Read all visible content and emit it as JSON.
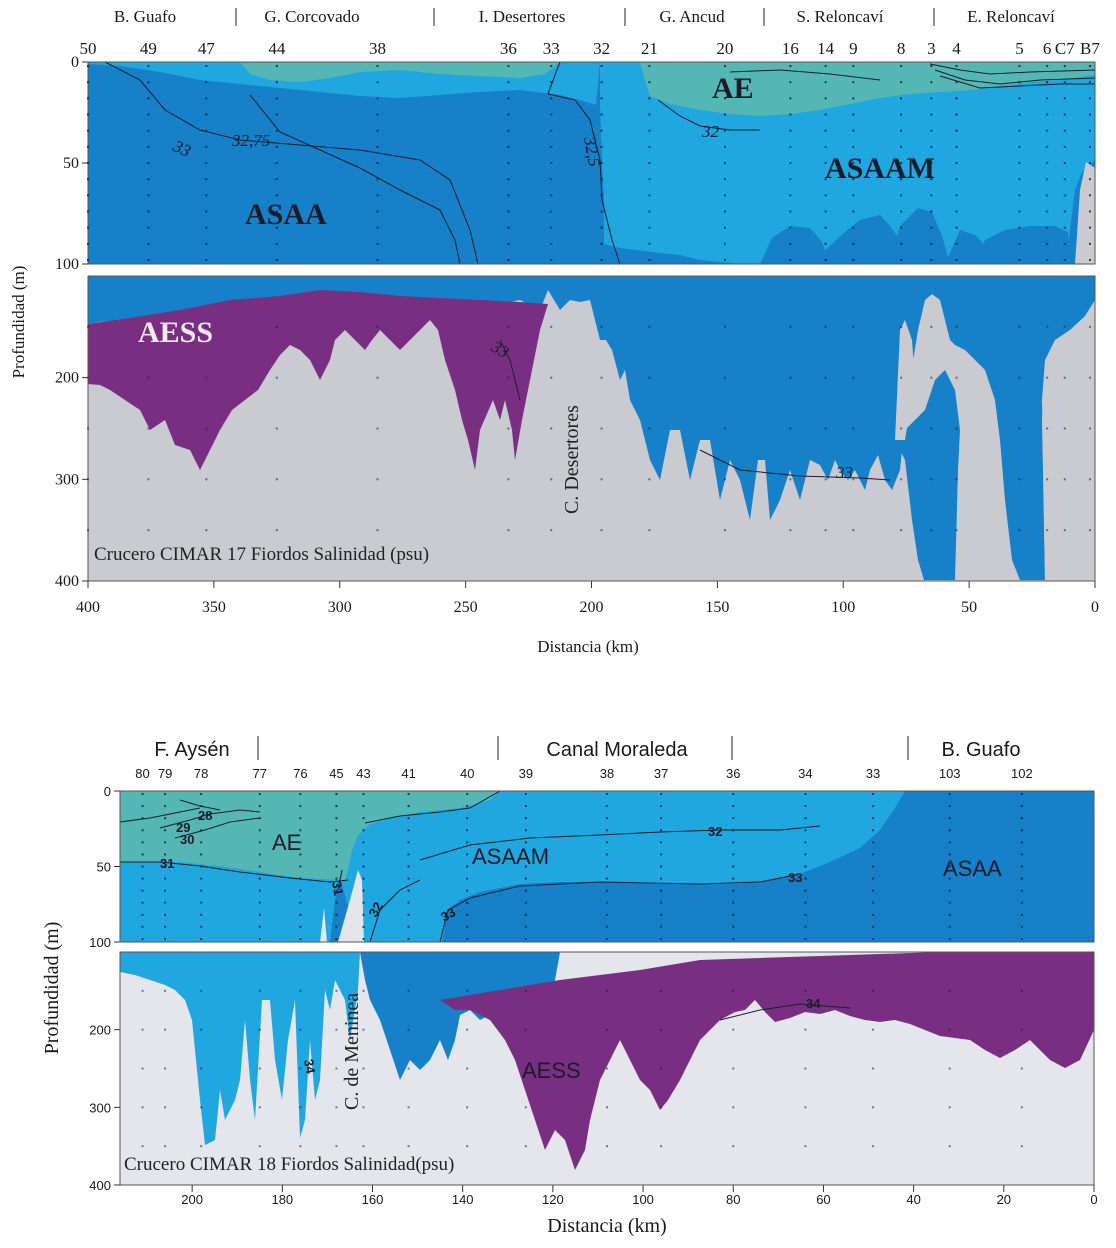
{
  "chart_data": [
    {
      "type": "contour",
      "caption": "Crucero CIMAR 17 Fiordos Salinidad (psu)",
      "xlabel": "Distancia (km)",
      "ylabel": "Profundidad (m)",
      "x_ticks": [
        400,
        350,
        300,
        250,
        200,
        150,
        100,
        50,
        0
      ],
      "y_ticks": [
        0,
        50,
        100,
        200,
        300,
        400
      ],
      "xlim": [
        400,
        0
      ],
      "ylim_upper": [
        0,
        100
      ],
      "ylim_lower": [
        100,
        400
      ],
      "regions": [
        "B. Guafo",
        "G. Corcovado",
        "I. Desertores",
        "G. Ancud",
        "S. Reloncaví",
        "E. Reloncaví"
      ],
      "stations": [
        {
          "id": "50",
          "km": 400
        },
        {
          "id": "49",
          "km": 376
        },
        {
          "id": "47",
          "km": 353
        },
        {
          "id": "44",
          "km": 325
        },
        {
          "id": "38",
          "km": 285
        },
        {
          "id": "36",
          "km": 233
        },
        {
          "id": "33",
          "km": 216
        },
        {
          "id": "32",
          "km": 196
        },
        {
          "id": "21",
          "km": 177
        },
        {
          "id": "20",
          "km": 147
        },
        {
          "id": "16",
          "km": 121
        },
        {
          "id": "14",
          "km": 107
        },
        {
          "id": "9",
          "km": 96
        },
        {
          "id": "8",
          "km": 77
        },
        {
          "id": "3",
          "km": 65
        },
        {
          "id": "4",
          "km": 55
        },
        {
          "id": "5",
          "km": 30
        },
        {
          "id": "6",
          "km": 19
        },
        {
          "id": "C7",
          "km": 12
        },
        {
          "id": "B7",
          "km": 2
        }
      ],
      "water_masses": [
        "AE",
        "ASAAM",
        "ASAA",
        "AESS"
      ],
      "isohaline_labels": [
        "33",
        "32,75",
        "32",
        "32,5",
        "33",
        "33"
      ],
      "annotation": "C. Desertores"
    },
    {
      "type": "contour",
      "caption": "Crucero CIMAR 18 Fiordos Salinidad(psu)",
      "xlabel": "Distancia (km)",
      "ylabel": "Profundidad (m)",
      "x_ticks": [
        200,
        180,
        160,
        140,
        120,
        100,
        80,
        60,
        40,
        20,
        0
      ],
      "y_ticks": [
        0,
        50,
        100,
        200,
        300,
        400
      ],
      "xlim": [
        216,
        0
      ],
      "ylim_upper": [
        0,
        100
      ],
      "ylim_lower": [
        100,
        400
      ],
      "regions": [
        "F. Aysén",
        "Canal Moraleda",
        "B. Guafo"
      ],
      "stations": [
        {
          "id": "80",
          "km": 211
        },
        {
          "id": "79",
          "km": 206
        },
        {
          "id": "78",
          "km": 198
        },
        {
          "id": "77",
          "km": 185
        },
        {
          "id": "76",
          "km": 176
        },
        {
          "id": "45",
          "km": 168
        },
        {
          "id": "43",
          "km": 162
        },
        {
          "id": "41",
          "km": 152
        },
        {
          "id": "40",
          "km": 139
        },
        {
          "id": "39",
          "km": 126
        },
        {
          "id": "38",
          "km": 108
        },
        {
          "id": "37",
          "km": 96
        },
        {
          "id": "36",
          "km": 80
        },
        {
          "id": "34",
          "km": 64
        },
        {
          "id": "33",
          "km": 49
        },
        {
          "id": "103",
          "km": 32
        },
        {
          "id": "102",
          "km": 16
        }
      ],
      "water_masses": [
        "AE",
        "ASAAM",
        "ASAA",
        "AESS"
      ],
      "isohaline_labels": [
        "28",
        "29",
        "30",
        "31",
        "31",
        "32",
        "32",
        "33",
        "33",
        "34",
        "34"
      ],
      "annotation": "C. de Meninea"
    }
  ],
  "colors": {
    "AE": "#55b7b4",
    "ASAAM": "#21a7df",
    "ASAA": "#1680c8",
    "AESS": "#782f82",
    "bottom_top": "#c9cbd0",
    "bottom_bottom": "#e4e6ec"
  }
}
